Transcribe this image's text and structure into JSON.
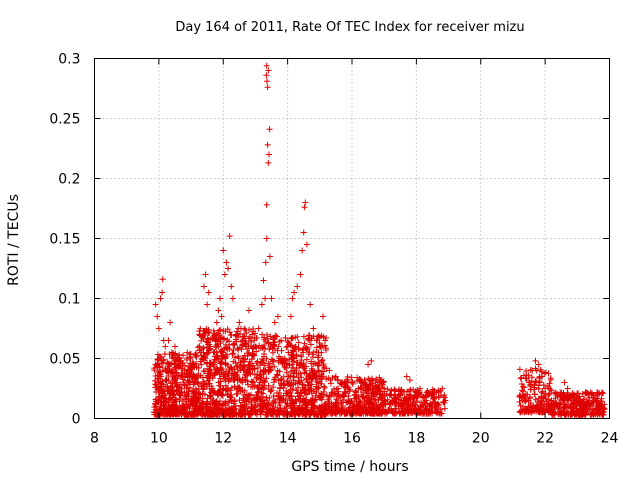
{
  "chart_data": {
    "type": "scatter",
    "title": "Day 164 of 2011, Rate Of TEC Index for receiver mizu",
    "xlabel": "GPS time / hours",
    "ylabel": "ROTI / TECUs",
    "xlim": [
      8,
      24
    ],
    "ylim": [
      0,
      0.3
    ],
    "xticks": [
      8,
      10,
      12,
      14,
      16,
      18,
      20,
      22,
      24
    ],
    "yticks": [
      0,
      0.05,
      0.1,
      0.15,
      0.2,
      0.25,
      0.3
    ],
    "xtick_labels": [
      "8",
      "10",
      "12",
      "14",
      "16",
      "18",
      "20",
      "22",
      "24"
    ],
    "ytick_labels": [
      "0",
      "0.05",
      "0.1",
      "0.15",
      "0.2",
      "0.25",
      "0.3"
    ],
    "grid": true,
    "marker": "plus",
    "color": "#e00000",
    "series": [
      {
        "name": "ROTI",
        "points": [
          [
            9.9,
            0.095
          ],
          [
            9.95,
            0.085
          ],
          [
            10.0,
            0.075
          ],
          [
            10.05,
            0.1
          ],
          [
            10.1,
            0.105
          ],
          [
            10.12,
            0.116
          ],
          [
            10.15,
            0.065
          ],
          [
            10.2,
            0.06
          ],
          [
            10.3,
            0.065
          ],
          [
            10.35,
            0.08
          ],
          [
            10.4,
            0.055
          ],
          [
            10.5,
            0.06
          ],
          [
            10.6,
            0.045
          ],
          [
            10.8,
            0.04
          ],
          [
            10.9,
            0.035
          ],
          [
            11.1,
            0.03
          ],
          [
            11.2,
            0.03
          ],
          [
            11.3,
            0.055
          ],
          [
            11.4,
            0.11
          ],
          [
            11.45,
            0.12
          ],
          [
            11.5,
            0.095
          ],
          [
            11.55,
            0.105
          ],
          [
            11.6,
            0.06
          ],
          [
            11.7,
            0.055
          ],
          [
            11.8,
            0.08
          ],
          [
            11.85,
            0.09
          ],
          [
            11.9,
            0.1
          ],
          [
            11.95,
            0.085
          ],
          [
            12.0,
            0.14
          ],
          [
            12.05,
            0.12
          ],
          [
            12.1,
            0.13
          ],
          [
            12.15,
            0.125
          ],
          [
            12.2,
            0.152
          ],
          [
            12.25,
            0.11
          ],
          [
            12.3,
            0.1
          ],
          [
            12.4,
            0.07
          ],
          [
            12.5,
            0.08
          ],
          [
            12.55,
            0.075
          ],
          [
            12.6,
            0.065
          ],
          [
            12.7,
            0.06
          ],
          [
            12.8,
            0.09
          ],
          [
            12.9,
            0.07
          ],
          [
            13.0,
            0.06
          ],
          [
            13.1,
            0.075
          ],
          [
            13.2,
            0.095
          ],
          [
            13.25,
            0.115
          ],
          [
            13.3,
            0.1
          ],
          [
            13.32,
            0.13
          ],
          [
            13.35,
            0.15
          ],
          [
            13.35,
            0.178
          ],
          [
            13.38,
            0.228
          ],
          [
            13.4,
            0.213
          ],
          [
            13.42,
            0.22
          ],
          [
            13.44,
            0.241
          ],
          [
            13.38,
            0.276
          ],
          [
            13.36,
            0.281
          ],
          [
            13.34,
            0.286
          ],
          [
            13.35,
            0.294
          ],
          [
            13.4,
            0.29
          ],
          [
            13.45,
            0.135
          ],
          [
            13.5,
            0.1
          ],
          [
            13.6,
            0.08
          ],
          [
            13.7,
            0.085
          ],
          [
            13.8,
            0.065
          ],
          [
            13.9,
            0.05
          ],
          [
            14.0,
            0.06
          ],
          [
            14.1,
            0.085
          ],
          [
            14.15,
            0.1
          ],
          [
            14.2,
            0.105
          ],
          [
            14.3,
            0.11
          ],
          [
            14.4,
            0.12
          ],
          [
            14.45,
            0.14
          ],
          [
            14.5,
            0.155
          ],
          [
            14.55,
            0.18
          ],
          [
            14.52,
            0.176
          ],
          [
            14.6,
            0.145
          ],
          [
            14.7,
            0.095
          ],
          [
            14.8,
            0.075
          ],
          [
            14.9,
            0.065
          ],
          [
            15.0,
            0.06
          ],
          [
            15.1,
            0.085
          ],
          [
            15.3,
            0.04
          ],
          [
            15.5,
            0.035
          ],
          [
            15.7,
            0.03
          ],
          [
            16.0,
            0.03
          ],
          [
            16.2,
            0.025
          ],
          [
            16.5,
            0.045
          ],
          [
            16.6,
            0.048
          ],
          [
            16.8,
            0.03
          ],
          [
            17.0,
            0.025
          ],
          [
            17.2,
            0.02
          ],
          [
            17.5,
            0.02
          ],
          [
            17.7,
            0.035
          ],
          [
            17.8,
            0.032
          ],
          [
            18.0,
            0.022
          ],
          [
            18.3,
            0.015
          ],
          [
            18.5,
            0.02
          ],
          [
            18.7,
            0.018
          ],
          [
            18.9,
            0.015
          ],
          [
            21.3,
            0.015
          ],
          [
            21.4,
            0.02
          ],
          [
            21.5,
            0.03
          ],
          [
            21.6,
            0.04
          ],
          [
            21.7,
            0.048
          ],
          [
            21.8,
            0.045
          ],
          [
            21.9,
            0.035
          ],
          [
            22.0,
            0.025
          ],
          [
            22.2,
            0.015
          ],
          [
            22.4,
            0.02
          ],
          [
            22.6,
            0.03
          ],
          [
            22.7,
            0.025
          ],
          [
            22.9,
            0.02
          ],
          [
            23.1,
            0.015
          ],
          [
            23.3,
            0.012
          ],
          [
            23.5,
            0.012
          ],
          [
            23.7,
            0.01
          ],
          [
            23.8,
            0.008
          ]
        ],
        "bands": [
          {
            "x": [
              9.85,
              11.2
            ],
            "y": [
              0.003,
              0.055
            ],
            "n": 520
          },
          {
            "x": [
              11.2,
              13.0
            ],
            "y": [
              0.003,
              0.075
            ],
            "n": 700
          },
          {
            "x": [
              13.0,
              15.2
            ],
            "y": [
              0.003,
              0.07
            ],
            "n": 700
          },
          {
            "x": [
              15.2,
              17.0
            ],
            "y": [
              0.004,
              0.035
            ],
            "n": 420
          },
          {
            "x": [
              17.0,
              18.9
            ],
            "y": [
              0.004,
              0.025
            ],
            "n": 280
          },
          {
            "x": [
              21.2,
              22.2
            ],
            "y": [
              0.005,
              0.042
            ],
            "n": 180
          },
          {
            "x": [
              22.2,
              23.85
            ],
            "y": [
              0.003,
              0.022
            ],
            "n": 320
          }
        ]
      }
    ]
  }
}
